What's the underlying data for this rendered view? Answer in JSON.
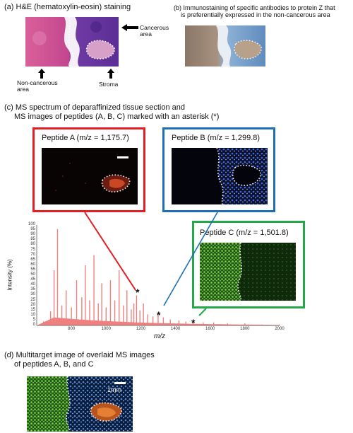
{
  "panel_a": {
    "caption": "(a) H&E (hematoxylin-eosin) staining",
    "label_cancerous_line1": "Cancerous",
    "label_cancerous_line2": "area",
    "label_noncancerous_line1": "Non-cancerous",
    "label_noncancerous_line2": "area",
    "label_stroma": "Stroma"
  },
  "panel_b": {
    "caption_line1": "(b) Immunostaining of specific antibodies to protein Z that",
    "caption_line2": "is preferentially expressed in the non-cancerous area"
  },
  "panel_c": {
    "caption_line1": "(c) MS spectrum of deparaffinized tissue section and",
    "caption_line2": "MS images of peptides (A, B, C) marked with an asterisk (*)",
    "peptide_a": "Peptide A (m/z = 1,175.7)",
    "peptide_b": "Peptide B (m/z = 1,299.8)",
    "peptide_c": "Peptide C (m/z = 1,501.8)",
    "colors": {
      "a": "#e31e24",
      "b": "#1f6fb8",
      "c": "#24a84a",
      "spectrum": "#f08080"
    },
    "star": "*"
  },
  "chart_data": {
    "type": "line",
    "ylabel": "Intensity (%)",
    "xlabel": "m/z",
    "xlim": [
      600,
      2000
    ],
    "ylim": [
      0,
      100
    ],
    "x_ticks": [
      "800",
      "1000",
      "1200",
      "1400",
      "1600",
      "1800",
      "2000"
    ],
    "y_ticks": [
      "0",
      "5",
      "10",
      "15",
      "20",
      "25",
      "30",
      "35",
      "40",
      "45",
      "50",
      "55",
      "60",
      "65",
      "70",
      "75",
      "80",
      "85",
      "90",
      "95",
      "100"
    ],
    "peaks": [
      {
        "x": 640,
        "y": 4
      },
      {
        "x": 680,
        "y": 14
      },
      {
        "x": 700,
        "y": 55
      },
      {
        "x": 720,
        "y": 96
      },
      {
        "x": 745,
        "y": 20
      },
      {
        "x": 770,
        "y": 35
      },
      {
        "x": 800,
        "y": 18
      },
      {
        "x": 830,
        "y": 45
      },
      {
        "x": 860,
        "y": 28
      },
      {
        "x": 880,
        "y": 60
      },
      {
        "x": 905,
        "y": 25
      },
      {
        "x": 930,
        "y": 70
      },
      {
        "x": 955,
        "y": 22
      },
      {
        "x": 975,
        "y": 42
      },
      {
        "x": 1000,
        "y": 18
      },
      {
        "x": 1025,
        "y": 45
      },
      {
        "x": 1050,
        "y": 25
      },
      {
        "x": 1075,
        "y": 55
      },
      {
        "x": 1100,
        "y": 20
      },
      {
        "x": 1120,
        "y": 35
      },
      {
        "x": 1145,
        "y": 16
      },
      {
        "x": 1160,
        "y": 22
      },
      {
        "x": 1175.7,
        "y": 30
      },
      {
        "x": 1195,
        "y": 15
      },
      {
        "x": 1215,
        "y": 22
      },
      {
        "x": 1240,
        "y": 11
      },
      {
        "x": 1270,
        "y": 9
      },
      {
        "x": 1299.8,
        "y": 12
      },
      {
        "x": 1330,
        "y": 8
      },
      {
        "x": 1370,
        "y": 6
      },
      {
        "x": 1420,
        "y": 5
      },
      {
        "x": 1460,
        "y": 4
      },
      {
        "x": 1501.8,
        "y": 4
      },
      {
        "x": 1560,
        "y": 3
      },
      {
        "x": 1620,
        "y": 3
      },
      {
        "x": 1700,
        "y": 2
      },
      {
        "x": 1800,
        "y": 2
      },
      {
        "x": 1900,
        "y": 1
      },
      {
        "x": 2000,
        "y": 1
      }
    ],
    "marked_peaks": [
      1175.7,
      1299.8,
      1501.8
    ]
  },
  "panel_d": {
    "caption_line1": "(d) Multitarget image of overlaid MS images",
    "caption_line2": "of peptides A, B, and C",
    "scale_label": "1mm"
  }
}
